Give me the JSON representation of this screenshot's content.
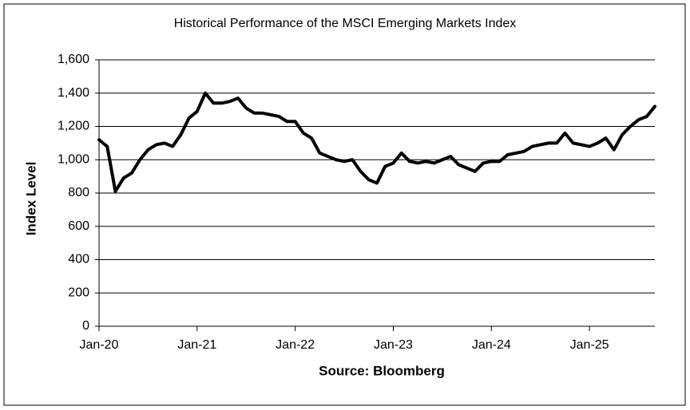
{
  "chart_data": {
    "type": "line",
    "title": "Historical Performance of the MSCI Emerging Markets Index",
    "ylabel": "Index Level",
    "xlabel": "Source: Bloomberg",
    "x": [
      "2020-01",
      "2020-02",
      "2020-03",
      "2020-04",
      "2020-05",
      "2020-06",
      "2020-07",
      "2020-08",
      "2020-09",
      "2020-10",
      "2020-11",
      "2020-12",
      "2021-01",
      "2021-02",
      "2021-03",
      "2021-04",
      "2021-05",
      "2021-06",
      "2021-07",
      "2021-08",
      "2021-09",
      "2021-10",
      "2021-11",
      "2021-12",
      "2022-01",
      "2022-02",
      "2022-03",
      "2022-04",
      "2022-05",
      "2022-06",
      "2022-07",
      "2022-08",
      "2022-09",
      "2022-10",
      "2022-11",
      "2022-12",
      "2023-01",
      "2023-02",
      "2023-03",
      "2023-04",
      "2023-05",
      "2023-06",
      "2023-07",
      "2023-08",
      "2023-09",
      "2023-10",
      "2023-11",
      "2023-12",
      "2024-01",
      "2024-02",
      "2024-03",
      "2024-04",
      "2024-05",
      "2024-06",
      "2024-07",
      "2024-08",
      "2024-09",
      "2024-10",
      "2024-11",
      "2024-12",
      "2025-01",
      "2025-02",
      "2025-03",
      "2025-04",
      "2025-05",
      "2025-06",
      "2025-07",
      "2025-08",
      "2025-09"
    ],
    "series": [
      {
        "name": "MSCI Emerging Markets Index",
        "color": "#000000",
        "values": [
          1120,
          1080,
          810,
          890,
          920,
          1000,
          1060,
          1090,
          1100,
          1080,
          1150,
          1250,
          1290,
          1400,
          1340,
          1340,
          1350,
          1370,
          1310,
          1280,
          1280,
          1270,
          1260,
          1230,
          1230,
          1160,
          1130,
          1040,
          1020,
          1000,
          990,
          1000,
          930,
          880,
          860,
          960,
          980,
          1040,
          990,
          980,
          990,
          980,
          1000,
          1020,
          970,
          950,
          930,
          980,
          990,
          990,
          1030,
          1040,
          1050,
          1080,
          1090,
          1100,
          1100,
          1160,
          1100,
          1090,
          1080,
          1100,
          1130,
          1060,
          1150,
          1200,
          1240,
          1260,
          1320
        ]
      }
    ],
    "xlim": [
      "2020-01",
      "2025-09"
    ],
    "xticks": [
      {
        "value": "2020-01",
        "label": "Jan-20"
      },
      {
        "value": "2021-01",
        "label": "Jan-21"
      },
      {
        "value": "2022-01",
        "label": "Jan-22"
      },
      {
        "value": "2023-01",
        "label": "Jan-23"
      },
      {
        "value": "2024-01",
        "label": "Jan-24"
      },
      {
        "value": "2025-01",
        "label": "Jan-25"
      }
    ],
    "ylim": [
      0,
      1600
    ],
    "yticks": [
      0,
      200,
      400,
      600,
      800,
      {
        "value": 1000,
        "label": "1,000"
      },
      {
        "value": 1200,
        "label": "1,200"
      },
      {
        "value": 1400,
        "label": "1,400"
      },
      {
        "value": 1600,
        "label": "1,600"
      }
    ],
    "grid": true
  }
}
